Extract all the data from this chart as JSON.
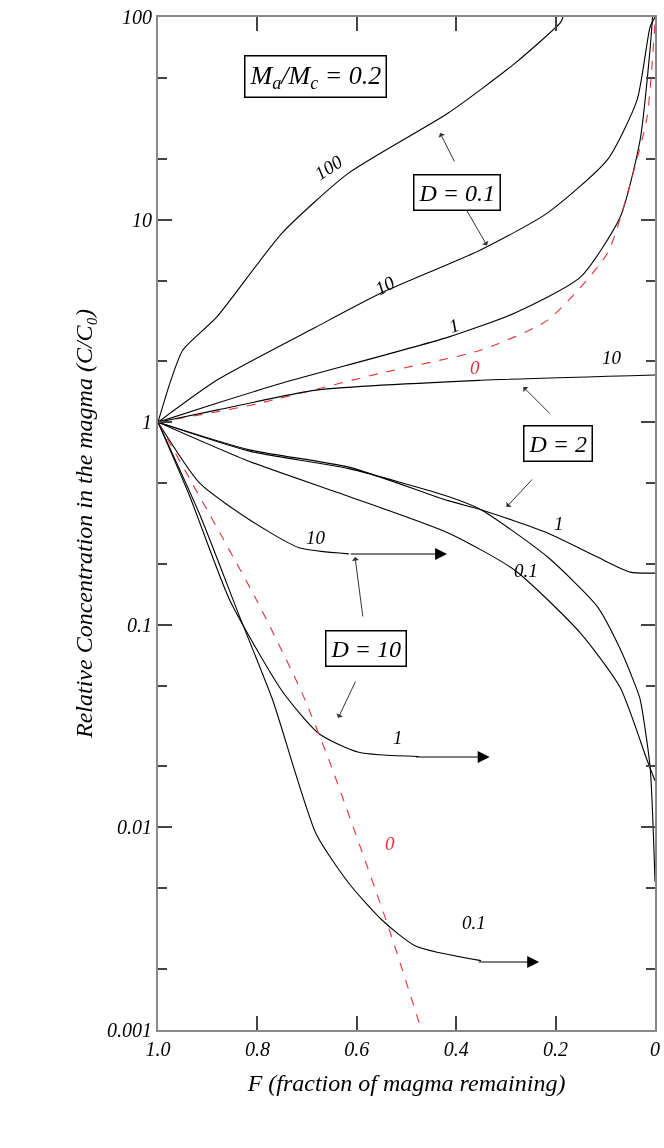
{
  "chart_data": {
    "type": "line",
    "xlabel": "F (fraction of magma remaining)",
    "ylabel": "Relative Concentration in the magma (C/C₀)",
    "xlim": [
      1.0,
      0
    ],
    "xticks": [
      {
        "value": 1.0,
        "label": "1.0"
      },
      0.8,
      0.6,
      0.4,
      0.2,
      0
    ],
    "ylim": [
      0.001,
      100
    ],
    "yticks": [
      0.001,
      0.01,
      0.1,
      1,
      10,
      100
    ],
    "log": "y",
    "series": [
      {
        "color": "#000000",
        "x": [
          1.0,
          0.976,
          0.95,
          0.882,
          0.75,
          0.616,
          0.416,
          0.282,
          0.19,
          0.185
        ],
        "values": [
          1,
          1.56,
          2.27,
          3.3,
          8.6,
          17,
          33.6,
          59,
          94,
          100
        ]
      },
      {
        "color": "#000000",
        "x": [
          1.0,
          0.882,
          0.682,
          0.55,
          0.35,
          0.216,
          0.096,
          0.036,
          0.01,
          0
        ],
        "values": [
          1,
          1.61,
          2.95,
          4.35,
          7.1,
          10.8,
          19.7,
          39,
          89,
          100
        ]
      },
      {
        "color": "#000000",
        "x": [
          1.0,
          0.882,
          0.75,
          0.416,
          0.282,
          0.15,
          0.07,
          0.03,
          0.01,
          0.005
        ],
        "values": [
          1,
          1.24,
          1.56,
          2.63,
          3.46,
          5.2,
          10.3,
          24.7,
          69,
          100
        ]
      },
      {
        "color": "#e8303a",
        "line_style": "dashed",
        "x": [
          1.0,
          0.816,
          0.55,
          0.35,
          0.216,
          0.096,
          0.05,
          0.016,
          0
        ],
        "values": [
          1,
          1.21,
          1.75,
          2.27,
          3.19,
          6.8,
          15,
          32,
          95
        ]
      },
      {
        "color": "#000000",
        "x": [
          1.0,
          0.88,
          0.682,
          0.35,
          0
        ],
        "values": [
          1,
          1.15,
          1.44,
          1.61,
          1.71
        ]
      },
      {
        "color": "#000000",
        "x": [
          1.0,
          0.816,
          0.616,
          0.416,
          0.35,
          0.216,
          0.116,
          0.05,
          0
        ],
        "values": [
          1,
          0.73,
          0.6,
          0.41,
          0.37,
          0.284,
          0.216,
          0.182,
          0.18
        ]
      },
      {
        "color": "#000000",
        "x": [
          1.0,
          0.816,
          0.616,
          0.416,
          0.35,
          0.216,
          0.116,
          0.07,
          0.042,
          0.03,
          0.01,
          0
        ],
        "values": [
          1,
          0.72,
          0.59,
          0.43,
          0.37,
          0.216,
          0.123,
          0.076,
          0.052,
          0.043,
          0.02,
          0.0054
        ]
      },
      {
        "color": "#000000",
        "x": [
          1.0,
          0.816,
          0.616,
          0.416,
          0.282,
          0.15,
          0.07,
          0.016,
          0
        ],
        "values": [
          1,
          0.64,
          0.43,
          0.284,
          0.186,
          0.091,
          0.049,
          0.0215,
          0.017
        ]
      },
      {
        "color": "#000000",
        "x": [
          1.0,
          0.916,
          0.816,
          0.716,
          0.616
        ],
        "values": [
          1,
          0.5,
          0.33,
          0.24,
          0.224
        ]
      },
      {
        "color": "#000000",
        "x": [
          1.0,
          0.936,
          0.856,
          0.75,
          0.676,
          0.596,
          0.476
        ],
        "values": [
          1,
          0.43,
          0.133,
          0.047,
          0.029,
          0.0235,
          0.0224
        ]
      },
      {
        "color": "#e8303a",
        "line_style": "dashed",
        "x": [
          1.0,
          0.802,
          0.71,
          0.656,
          0.536,
          0.47
        ],
        "values": [
          1,
          0.133,
          0.046,
          0.0215,
          0.0032,
          0.001
        ]
      },
      {
        "color": "#000000",
        "x": [
          1.0,
          0.916,
          0.836,
          0.77,
          0.682,
          0.616,
          0.55,
          0.482,
          0.35
        ],
        "values": [
          1,
          0.35,
          0.11,
          0.043,
          0.0093,
          0.0053,
          0.0035,
          0.0026,
          0.0022
        ]
      }
    ],
    "annotations": [
      "M$_{a}$/M$_{c}$ = 0.2",
      {
        "text": "D = 0.1",
        "x": 0.336,
        "y": 7.3
      },
      "D = 2",
      "D = 10",
      "100",
      "10",
      "1",
      "0",
      "10",
      "1",
      "0.1",
      "10",
      "1",
      "0",
      "0.1"
    ]
  }
}
